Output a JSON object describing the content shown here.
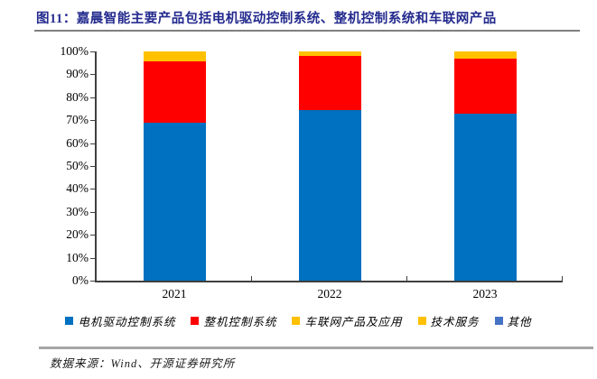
{
  "title": "图11：嘉晨智能主要产品包括电机驱动控制系统、整机控制系统和车联网产品",
  "source": "数据来源：Wind、开源证券研究所",
  "colors": {
    "title": "#242B8E",
    "axis": "#3f3f3f",
    "title_rule": "#7f7f7f",
    "source_rule": "#a6a6a6",
    "series_blue": "#0070C0",
    "series_red": "#FF0000",
    "series_yellow": "#FFC000",
    "series_other_blue": "#4472C4"
  },
  "chart_data": {
    "type": "bar",
    "stacked": true,
    "title": "嘉晨智能主要产品包括电机驱动控制系统、整机控制系统和车联网产品",
    "categories": [
      "2021",
      "2022",
      "2023"
    ],
    "series": [
      {
        "name": "电机驱动控制系统",
        "color": "#0070C0",
        "values": [
          69.1,
          74.5,
          73.0
        ]
      },
      {
        "name": "整机控制系统",
        "color": "#FF0000",
        "values": [
          26.6,
          23.4,
          23.7
        ]
      },
      {
        "name": "车联网产品及应用",
        "color": "#FFC000",
        "values": [
          4.3,
          2.1,
          3.3
        ]
      },
      {
        "name": "技术服务",
        "color": "#FFC000",
        "values": [
          0,
          0,
          0
        ]
      },
      {
        "name": "其他",
        "color": "#4472C4",
        "values": [
          0,
          0,
          0
        ]
      }
    ],
    "xlabel": "",
    "ylabel": "",
    "ylim": [
      0,
      100
    ],
    "yticks": [
      "0%",
      "10%",
      "20%",
      "30%",
      "40%",
      "50%",
      "60%",
      "70%",
      "80%",
      "90%",
      "100%"
    ],
    "grid": false,
    "legend_position": "bottom"
  }
}
